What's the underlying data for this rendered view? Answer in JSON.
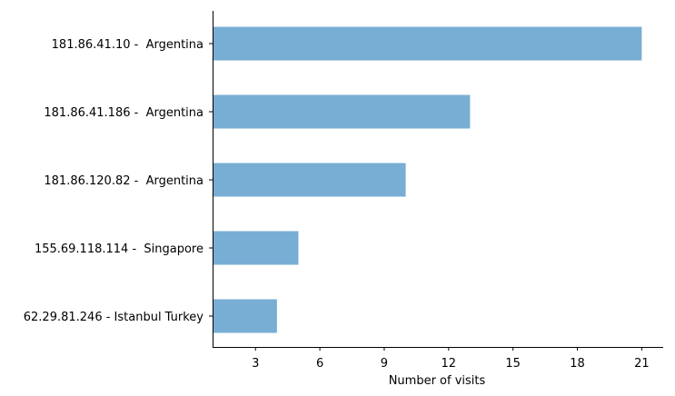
{
  "chart_data": {
    "type": "bar",
    "orientation": "horizontal",
    "categories": [
      "181.86.41.10 -  Argentina",
      "181.86.41.186 -  Argentina",
      "181.86.120.82 -  Argentina",
      "155.69.118.114 -  Singapore",
      "62.29.81.246 - Istanbul Turkey"
    ],
    "values": [
      21,
      13,
      10,
      5,
      4
    ],
    "xlabel": "Number of visits",
    "ylabel": "",
    "xlim": [
      1,
      22
    ],
    "xticks": [
      3,
      6,
      9,
      12,
      15,
      18,
      21
    ],
    "grid": false,
    "legend": "none",
    "bar_color": "#78aed3"
  }
}
